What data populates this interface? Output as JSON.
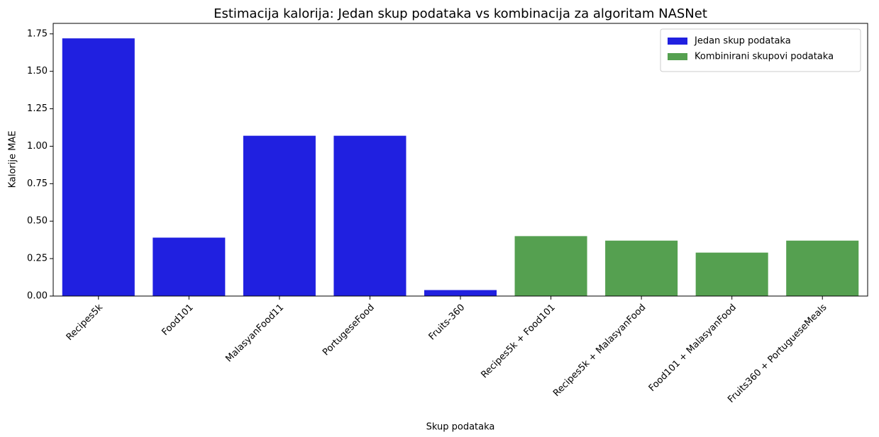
{
  "chart_data": {
    "type": "bar",
    "title": "Estimacija kalorija: Jedan skup podataka vs kombinacija za algoritam NASNet",
    "xlabel": "Skup podataka",
    "ylabel": "Kalorije MAE",
    "categories": [
      "Recipes5k",
      "Food101",
      "MalasyanFood11",
      "PortugeseFood",
      "Fruits-360",
      "Recipes5k + Food101",
      "Recipes5k + MalasyanFood",
      "Food101 + MalasyanFood",
      "Fruits360 + PortugueseMeals"
    ],
    "series": [
      {
        "name": "Jedan skup podataka",
        "color": "#2020e0",
        "values": [
          1.72,
          0.39,
          1.07,
          1.07,
          0.04,
          null,
          null,
          null,
          null
        ]
      },
      {
        "name": "Kombinirani skupovi podataka",
        "color": "#55a050",
        "values": [
          null,
          null,
          null,
          null,
          null,
          0.4,
          0.37,
          0.29,
          0.37
        ]
      }
    ],
    "ylim": [
      0,
      1.82
    ],
    "yticks": [
      {
        "value": 0,
        "label": "0.00"
      },
      {
        "value": 0.25,
        "label": "0.25"
      },
      {
        "value": 0.5,
        "label": "0.50"
      },
      {
        "value": 0.75,
        "label": "0.75"
      },
      {
        "value": 1,
        "label": "1.00"
      },
      {
        "value": 1.25,
        "label": "1.25"
      },
      {
        "value": 1.5,
        "label": "1.50"
      },
      {
        "value": 1.75,
        "label": "1.75"
      }
    ],
    "legend": "upper right"
  }
}
